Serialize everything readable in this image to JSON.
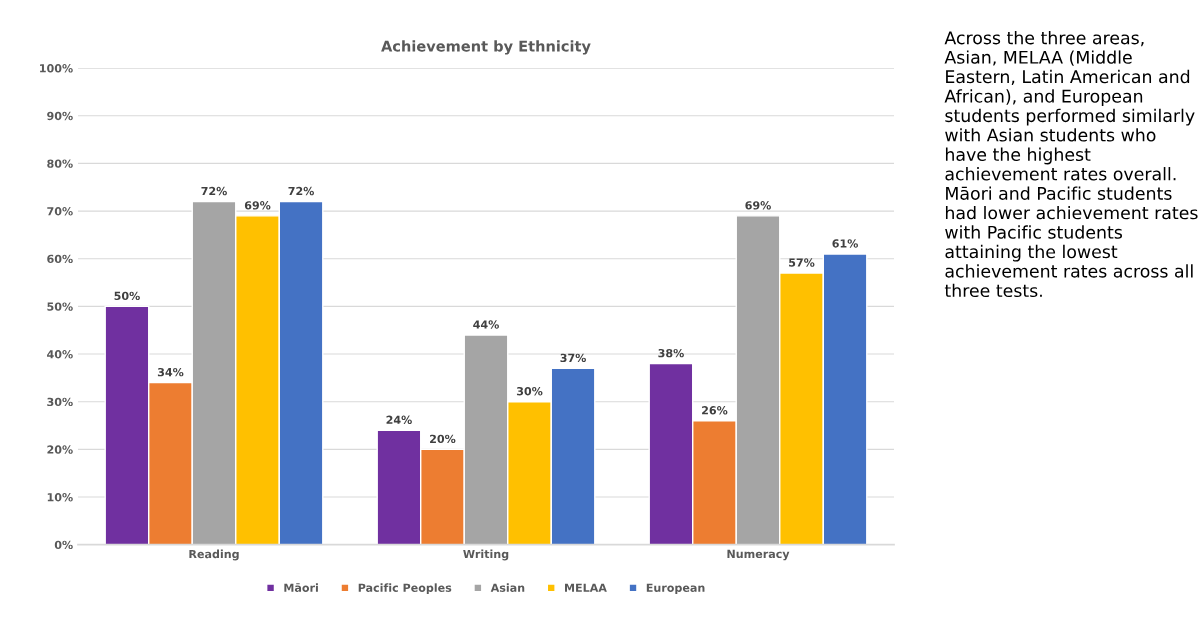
{
  "chart_data": {
    "type": "bar",
    "title": "Achievement by Ethnicity",
    "categories": [
      "Reading",
      "Writing",
      "Numeracy"
    ],
    "series": [
      {
        "name": "Māori",
        "color": "#7030a0",
        "values": [
          50,
          24,
          38
        ]
      },
      {
        "name": "Pacific Peoples",
        "color": "#ed7d31",
        "values": [
          34,
          20,
          26
        ]
      },
      {
        "name": "Asian",
        "color": "#a5a5a5",
        "values": [
          72,
          44,
          69
        ]
      },
      {
        "name": "MELAA",
        "color": "#ffc000",
        "values": [
          69,
          30,
          57
        ]
      },
      {
        "name": "European",
        "color": "#4472c4",
        "values": [
          72,
          37,
          61
        ]
      }
    ],
    "ylim": [
      0,
      100
    ],
    "yticks": [
      {
        "value": 0,
        "label": "0%"
      },
      {
        "value": 10,
        "label": "10%"
      },
      {
        "value": 20,
        "label": "20%"
      },
      {
        "value": 30,
        "label": "30%"
      },
      {
        "value": 40,
        "label": "40%"
      },
      {
        "value": 50,
        "label": "50%"
      },
      {
        "value": 60,
        "label": "60%"
      },
      {
        "value": 70,
        "label": "70%"
      },
      {
        "value": 80,
        "label": "80%"
      },
      {
        "value": 90,
        "label": "90%"
      },
      {
        "value": 100,
        "label": "100%"
      }
    ],
    "value_labels": [
      [
        "50%",
        "24%",
        "38%"
      ],
      [
        "34%",
        "20%",
        "26%"
      ],
      [
        "72%",
        "44%",
        "69%"
      ],
      [
        "69%",
        "30%",
        "57%"
      ],
      [
        "72%",
        "37%",
        "61%"
      ]
    ],
    "grid": "y",
    "legend": "bottom",
    "annotations": [
      "Across the three areas, Asian, MELAA (Middle Eastern, Latin American and African), and European students performed similarly with Asian students who have the highest achievement rates overall. Māori and Pacific students had lower achievement rates with Pacific students attaining the lowest achievement rates across all three tests."
    ]
  }
}
